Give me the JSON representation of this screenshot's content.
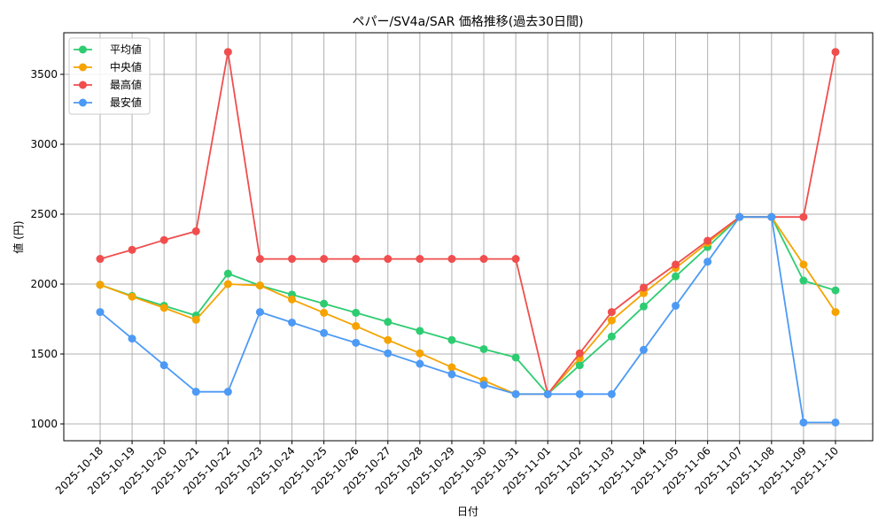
{
  "chart_data": {
    "type": "line",
    "title": "ペパー/SV4a/SAR 価格推移(過去30日間)",
    "xlabel": "日付",
    "ylabel": "値 (円)",
    "ylim": [
      880,
      3780
    ],
    "yticks": [
      1000,
      1500,
      2000,
      2500,
      3000,
      3500
    ],
    "grid": true,
    "legend_position": "upper left",
    "categories": [
      "2025-10-18",
      "2025-10-19",
      "2025-10-20",
      "2025-10-21",
      "2025-10-22",
      "2025-10-23",
      "2025-10-24",
      "2025-10-25",
      "2025-10-26",
      "2025-10-27",
      "2025-10-28",
      "2025-10-29",
      "2025-10-30",
      "2025-10-31",
      "2025-11-01",
      "2025-11-02",
      "2025-11-03",
      "2025-11-04",
      "2025-11-05",
      "2025-11-06",
      "2025-11-07",
      "2025-11-08",
      "2025-11-09",
      "2025-11-10"
    ],
    "series": [
      {
        "name": "平均値",
        "color": "#2ecc71",
        "values": [
          1995,
          1915,
          1845,
          1775,
          2075,
          1990,
          1925,
          1860,
          1795,
          1730,
          1665,
          1600,
          1535,
          1475,
          1213,
          1420,
          1625,
          1840,
          2055,
          2265,
          2480,
          2480,
          2025,
          1955
        ]
      },
      {
        "name": "中央値",
        "color": "#f5a300",
        "values": [
          1995,
          1910,
          1830,
          1745,
          2000,
          1990,
          1890,
          1795,
          1700,
          1600,
          1505,
          1405,
          1310,
          1213,
          1213,
          1470,
          1740,
          1935,
          2115,
          2295,
          2480,
          2480,
          2140,
          1800
        ]
      },
      {
        "name": "最高値",
        "color": "#f04e4e",
        "values": [
          2180,
          2245,
          2315,
          2378,
          3660,
          2180,
          2180,
          2180,
          2180,
          2180,
          2180,
          2180,
          2180,
          2180,
          1213,
          1505,
          1800,
          1975,
          2140,
          2310,
          2480,
          2480,
          2480,
          3660
        ]
      },
      {
        "name": "最安値",
        "color": "#4d9af5",
        "values": [
          1800,
          1610,
          1420,
          1230,
          1230,
          1800,
          1725,
          1650,
          1580,
          1505,
          1430,
          1355,
          1280,
          1213,
          1213,
          1213,
          1213,
          1530,
          1845,
          2160,
          2480,
          2480,
          1010,
          1010
        ]
      }
    ]
  }
}
